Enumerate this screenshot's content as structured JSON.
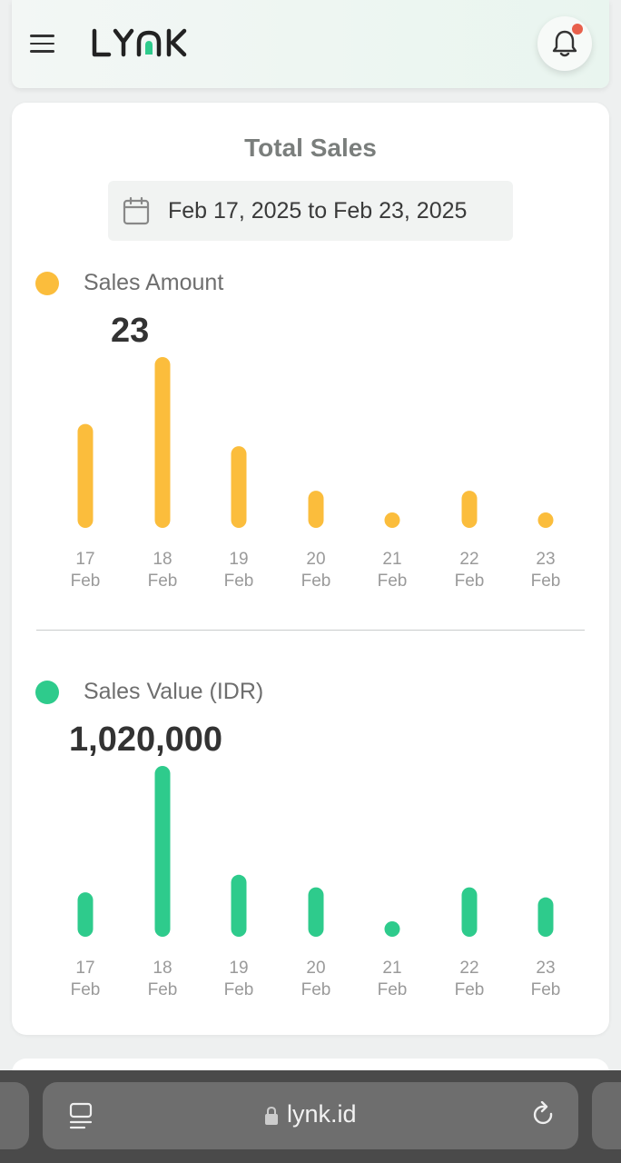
{
  "app": {
    "logo_text": "LYNK"
  },
  "header": {
    "menu_icon": "hamburger-icon",
    "bell_icon": "bell-icon",
    "has_notification": true
  },
  "card": {
    "title": "Total Sales",
    "date_range": "Feb 17, 2025 to Feb 23, 2025",
    "calendar_icon": "calendar-icon"
  },
  "colors": {
    "amount": "#fbbd3c",
    "value": "#2ecb8c",
    "notification": "#e8604c"
  },
  "chart_data": [
    {
      "type": "bar",
      "title": "Sales Amount",
      "highlight_value": "23",
      "categories": [
        "17 Feb",
        "18 Feb",
        "19 Feb",
        "20 Feb",
        "21 Feb",
        "22 Feb",
        "23 Feb"
      ],
      "tick_day": [
        "17",
        "18",
        "19",
        "20",
        "21",
        "22",
        "23"
      ],
      "tick_month": [
        "Feb",
        "Feb",
        "Feb",
        "Feb",
        "Feb",
        "Feb",
        "Feb"
      ],
      "values": [
        14,
        23,
        11,
        5,
        2,
        5,
        2
      ]
    },
    {
      "type": "bar",
      "title": "Sales Value (IDR)",
      "highlight_value": "1,020,000",
      "categories": [
        "17 Feb",
        "18 Feb",
        "19 Feb",
        "20 Feb",
        "21 Feb",
        "22 Feb",
        "23 Feb"
      ],
      "tick_day": [
        "17",
        "18",
        "19",
        "20",
        "21",
        "22",
        "23"
      ],
      "tick_month": [
        "Feb",
        "Feb",
        "Feb",
        "Feb",
        "Feb",
        "Feb",
        "Feb"
      ],
      "values": [
        265000,
        1020000,
        370000,
        295000,
        55000,
        295000,
        235000
      ]
    }
  ],
  "browser": {
    "url": "lynk.id",
    "tabs_icon": "tabs-icon",
    "lock_icon": "lock-icon",
    "reload_icon": "reload-icon"
  }
}
